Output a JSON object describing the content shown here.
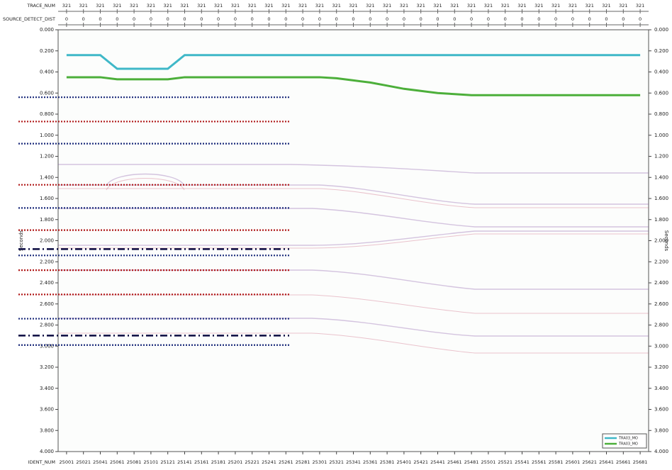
{
  "chart_data": {
    "type": "line",
    "ylabel": "Seconds",
    "y2label": "Seconds",
    "xlabel": "IDENT_NUM",
    "top_rows": [
      {
        "label": "TRACE_NUM",
        "values": [
          321,
          321,
          321,
          321,
          321,
          321,
          321,
          321,
          321,
          321,
          321,
          321,
          321,
          321,
          321,
          321,
          321,
          321,
          321,
          321,
          321,
          321,
          321,
          321,
          321,
          321,
          321,
          321,
          321,
          321,
          321,
          321,
          321,
          321,
          321
        ]
      },
      {
        "label": "SOURCE_DETECT_DIST",
        "values": [
          0,
          0,
          0,
          0,
          0,
          0,
          0,
          0,
          0,
          0,
          0,
          0,
          0,
          0,
          0,
          0,
          0,
          0,
          0,
          0,
          0,
          0,
          0,
          0,
          0,
          0,
          0,
          0,
          0,
          0,
          0,
          0,
          0,
          0,
          0
        ]
      }
    ],
    "x": [
      25001,
      25021,
      25041,
      25061,
      25081,
      25101,
      25121,
      25141,
      25161,
      25181,
      25201,
      25221,
      25241,
      25261,
      25281,
      25301,
      25321,
      25341,
      25361,
      25381,
      25401,
      25421,
      25441,
      25461,
      25481,
      25501,
      25521,
      25541,
      25561,
      25581,
      25601,
      25621,
      25641,
      25661,
      25681
    ],
    "xticks": [
      25001,
      25021,
      25041,
      25061,
      25081,
      25101,
      25121,
      25141,
      25161,
      25181,
      25201,
      25221,
      25241,
      25261,
      25281,
      25301,
      25321,
      25341,
      25361,
      25381,
      25401,
      25421,
      25441,
      25461,
      25481,
      25501,
      25521,
      25541,
      25561,
      25581,
      25601,
      25621,
      25641,
      25661,
      25681
    ],
    "xlim": [
      24991,
      25691
    ],
    "ylim": [
      0,
      4
    ],
    "y_inverted": true,
    "yticks": [
      {
        "value": 0,
        "label": "0.000"
      },
      {
        "value": 0.2,
        "label": "0.200"
      },
      {
        "value": 0.4,
        "label": "0.400"
      },
      {
        "value": 0.6,
        "label": "0.600"
      },
      {
        "value": 0.8,
        "label": "0.800"
      },
      {
        "value": 1.0,
        "label": "1.000"
      },
      {
        "value": 1.2,
        "label": "1.200"
      },
      {
        "value": 1.4,
        "label": "1.400"
      },
      {
        "value": 1.6,
        "label": "1.600"
      },
      {
        "value": 1.8,
        "label": "1.800"
      },
      {
        "value": 2.0,
        "label": "2.000"
      },
      {
        "value": 2.2,
        "label": "2.200"
      },
      {
        "value": 2.4,
        "label": "2.400"
      },
      {
        "value": 2.6,
        "label": "2.600"
      },
      {
        "value": 2.8,
        "label": "2.800"
      },
      {
        "value": 3.0,
        "label": "3.000"
      },
      {
        "value": 3.2,
        "label": "3.200"
      },
      {
        "value": 3.4,
        "label": "3.400"
      },
      {
        "value": 3.6,
        "label": "3.600"
      },
      {
        "value": 3.8,
        "label": "3.800"
      },
      {
        "value": 4.0,
        "label": "4.000"
      }
    ],
    "series": [
      {
        "name": "TRA03_MO",
        "color": "#3fb8c8",
        "values": [
          0.24,
          0.24,
          0.24,
          0.37,
          0.37,
          0.37,
          0.37,
          0.24,
          0.24,
          0.24,
          0.24,
          0.24,
          0.24,
          0.24,
          0.24,
          0.24,
          0.24,
          0.24,
          0.24,
          0.24,
          0.24,
          0.24,
          0.24,
          0.24,
          0.24,
          0.24,
          0.24,
          0.24,
          0.24,
          0.24,
          0.24,
          0.24,
          0.24,
          0.24,
          0.24
        ]
      },
      {
        "name": "TRA03_MO",
        "color": "#4caf3a",
        "values": [
          0.45,
          0.45,
          0.45,
          0.47,
          0.47,
          0.47,
          0.47,
          0.45,
          0.45,
          0.45,
          0.45,
          0.45,
          0.45,
          0.45,
          0.45,
          0.45,
          0.46,
          0.48,
          0.5,
          0.53,
          0.56,
          0.58,
          0.6,
          0.61,
          0.62,
          0.62,
          0.62,
          0.62,
          0.62,
          0.62,
          0.62,
          0.62,
          0.62,
          0.62,
          0.62
        ]
      }
    ],
    "reference_lines": [
      {
        "y": 0.64,
        "color": "#1a2a7a",
        "style": "dotted"
      },
      {
        "y": 0.87,
        "color": "#b01818",
        "style": "dotted"
      },
      {
        "y": 1.08,
        "color": "#1a2a7a",
        "style": "dotted"
      },
      {
        "y": 1.47,
        "color": "#b01818",
        "style": "dotted"
      },
      {
        "y": 1.69,
        "color": "#1a2a7a",
        "style": "dotted"
      },
      {
        "y": 1.9,
        "color": "#b01818",
        "style": "dotted"
      },
      {
        "y": 2.08,
        "color": "#0a0a40",
        "style": "dashdot"
      },
      {
        "y": 2.14,
        "color": "#1a2a7a",
        "style": "dotted"
      },
      {
        "y": 2.28,
        "color": "#b01818",
        "style": "dotted"
      },
      {
        "y": 2.51,
        "color": "#b01818",
        "style": "dotted"
      },
      {
        "y": 2.74,
        "color": "#1a2a7a",
        "style": "dotted"
      },
      {
        "y": 2.9,
        "color": "#0a0a40",
        "style": "dashdot"
      },
      {
        "y": 2.99,
        "color": "#1a2a7a",
        "style": "dotted"
      }
    ],
    "legend": "lower right"
  }
}
